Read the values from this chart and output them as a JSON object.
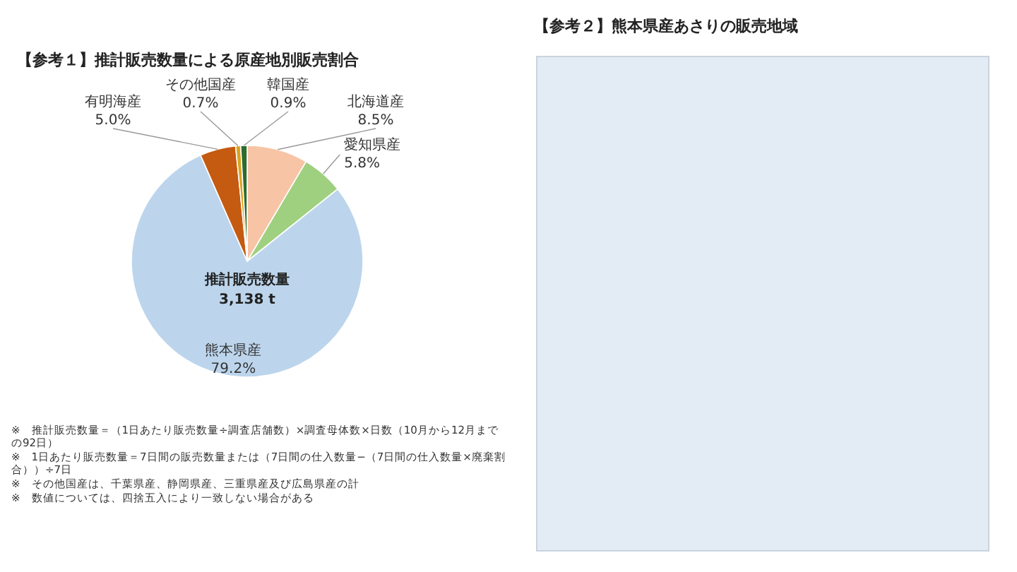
{
  "chart_data": [
    {
      "type": "pie",
      "title": "【参考１】推計販売数量による原産地別販売割合",
      "categories": [
        "北海道産",
        "愛知県産",
        "熊本県産",
        "有明海産",
        "その他国産",
        "韓国産"
      ],
      "values": [
        8.5,
        5.8,
        79.2,
        5.0,
        0.7,
        0.9
      ],
      "colors": [
        "#f7c4a5",
        "#9fd07f",
        "#bcd5ec",
        "#c55a11",
        "#d9a520",
        "#2e6b2e"
      ],
      "value_labels": [
        "8.5%",
        "5.8%",
        "79.2%",
        "5.0%",
        "0.7%",
        "0.9%"
      ],
      "annotations": [
        "推計販売数量",
        "3,138 t",
        "※　推計販売数量＝（1日あたり販売数量÷調査店舗数）×調査母体数×日数（10月から12月までの92日）",
        "※　1日あたり販売数量＝7日間の販売数量または（7日間の仕入数量−（7日間の仕入数量×廃棄割合））÷7日",
        "※　その他国産は、千葉県産、静岡県産、三重県産及び広島県産の計",
        "※　数値については、四捨五入により一致しない場合がある"
      ]
    },
    {
      "type": "other",
      "title": "【参考２】熊本県産あさりの販売地域"
    }
  ]
}
